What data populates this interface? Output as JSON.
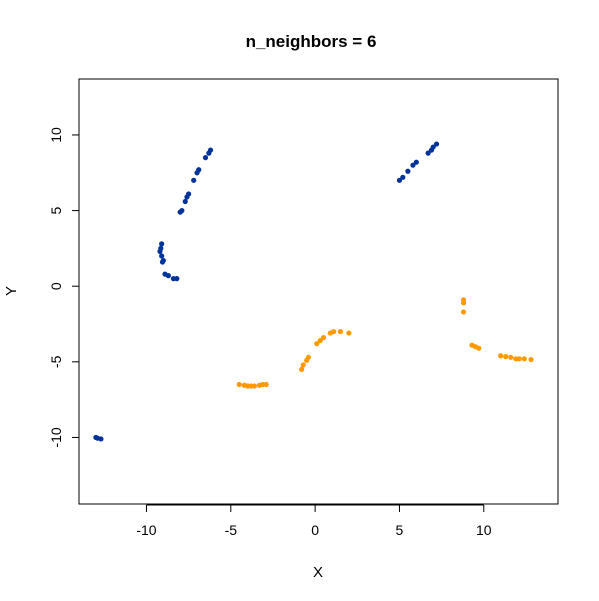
{
  "chart_data": {
    "type": "scatter",
    "title": "n_neighbors = 6",
    "xlabel": "X",
    "ylabel": "Y",
    "xlim": [
      -14.0,
      14.4
    ],
    "ylim": [
      -14.4,
      13.7
    ],
    "xticks": [
      -10,
      -5,
      0,
      5,
      10
    ],
    "yticks": [
      -10,
      -5,
      0,
      5,
      10
    ],
    "grid": false,
    "legend": "none",
    "series": [
      {
        "color": "#003399",
        "points": [
          [
            -6.2,
            9.0
          ],
          [
            -6.3,
            8.8
          ],
          [
            -6.5,
            8.5
          ],
          [
            -6.9,
            7.7
          ],
          [
            -7.0,
            7.5
          ],
          [
            -7.2,
            7.0
          ],
          [
            -7.5,
            6.1
          ],
          [
            -7.6,
            5.9
          ],
          [
            -7.7,
            5.6
          ],
          [
            -7.9,
            5.0
          ],
          [
            -8.0,
            4.9
          ],
          [
            -9.1,
            2.8
          ],
          [
            -9.15,
            2.5
          ],
          [
            -9.2,
            2.3
          ],
          [
            -9.1,
            2.0
          ],
          [
            -9.0,
            1.7
          ],
          [
            -9.05,
            1.6
          ],
          [
            -8.9,
            0.8
          ],
          [
            -8.7,
            0.7
          ],
          [
            -8.4,
            0.5
          ],
          [
            -8.2,
            0.5
          ],
          [
            5.0,
            7.0
          ],
          [
            5.2,
            7.2
          ],
          [
            5.5,
            7.6
          ],
          [
            5.8,
            8.0
          ],
          [
            6.0,
            8.2
          ],
          [
            6.7,
            8.8
          ],
          [
            6.9,
            9.0
          ],
          [
            7.0,
            9.2
          ],
          [
            7.2,
            9.4
          ],
          [
            -13.0,
            -10.0
          ],
          [
            -12.9,
            -10.05
          ],
          [
            -12.7,
            -10.1
          ]
        ]
      },
      {
        "color": "#FF9900",
        "points": [
          [
            -4.5,
            -6.5
          ],
          [
            -4.2,
            -6.55
          ],
          [
            -4.0,
            -6.6
          ],
          [
            -3.8,
            -6.6
          ],
          [
            -3.6,
            -6.6
          ],
          [
            -3.3,
            -6.55
          ],
          [
            -3.1,
            -6.5
          ],
          [
            -2.9,
            -6.5
          ],
          [
            -0.8,
            -5.5
          ],
          [
            -0.7,
            -5.2
          ],
          [
            -0.5,
            -4.9
          ],
          [
            -0.4,
            -4.7
          ],
          [
            0.1,
            -3.8
          ],
          [
            0.3,
            -3.6
          ],
          [
            0.5,
            -3.4
          ],
          [
            0.9,
            -3.1
          ],
          [
            1.1,
            -3.0
          ],
          [
            1.5,
            -3.0
          ],
          [
            2.0,
            -3.1
          ],
          [
            8.8,
            -0.9
          ],
          [
            8.8,
            -1.1
          ],
          [
            8.8,
            -1.7
          ],
          [
            9.3,
            -3.9
          ],
          [
            9.5,
            -4.0
          ],
          [
            9.7,
            -4.1
          ],
          [
            11.0,
            -4.6
          ],
          [
            11.3,
            -4.65
          ],
          [
            11.6,
            -4.7
          ],
          [
            11.9,
            -4.8
          ],
          [
            12.1,
            -4.8
          ],
          [
            12.4,
            -4.8
          ],
          [
            12.8,
            -4.85
          ]
        ]
      }
    ]
  }
}
